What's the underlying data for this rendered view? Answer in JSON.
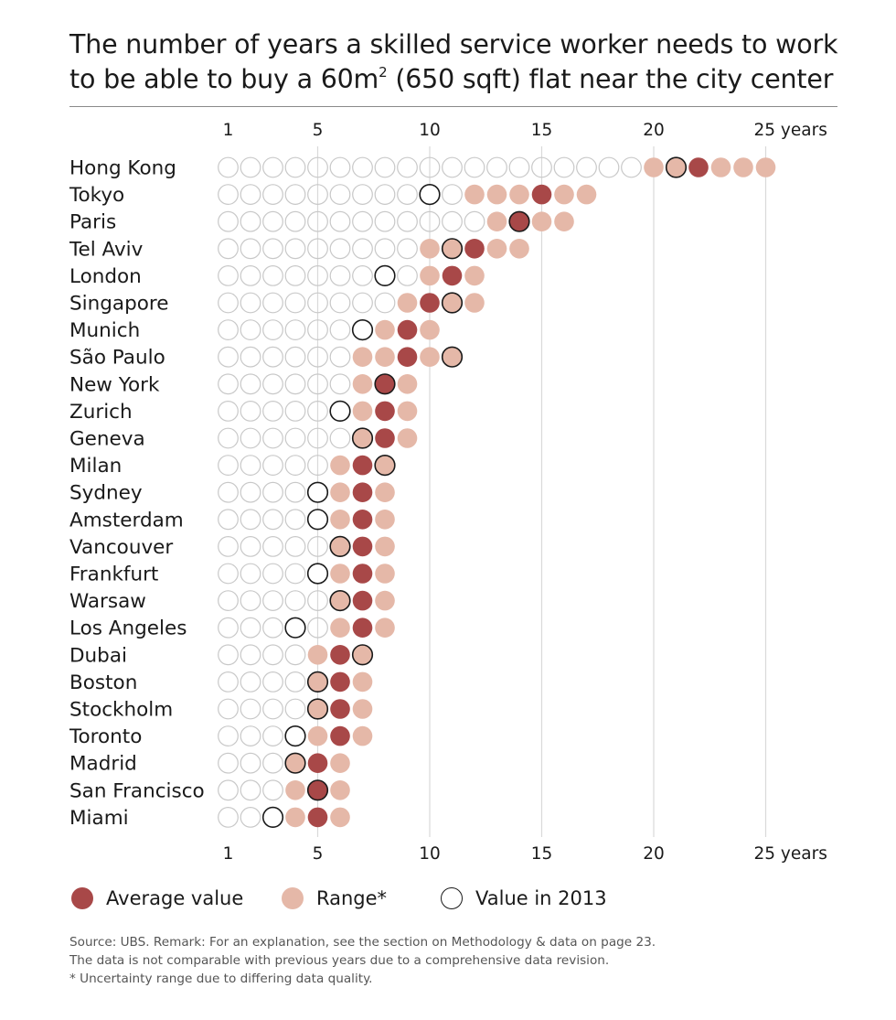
{
  "title": {
    "line1": "The number of years a skilled service worker needs to work",
    "line2_before": "to be able to buy a 60m",
    "line2_sup": "2",
    "line2_after": " (650 sqft) flat near the city center"
  },
  "colors": {
    "average": "#a84848",
    "range": "#e5b8a8",
    "empty_stroke": "#c8c8c8",
    "value_2013_stroke": "#1a1a1a",
    "gridline": "#d9d9d9"
  },
  "legend": {
    "average_label": "Average value",
    "range_label": "Range*",
    "value_2013_label": "Value in 2013"
  },
  "footnotes": {
    "source": "Source: UBS. Remark: For an explanation, see the section on Methodology & data on page 23.",
    "revision": "The data is not comparable with previous years due to a comprehensive data revision.",
    "uncertainty": "* Uncertainty range due to differing data quality."
  },
  "chart_data": {
    "type": "dot-range",
    "x_ticks": [
      {
        "value": 1,
        "label": "1"
      },
      {
        "value": 5,
        "label": "5"
      },
      {
        "value": 10,
        "label": "10"
      },
      {
        "value": 15,
        "label": "15"
      },
      {
        "value": 20,
        "label": "20"
      },
      {
        "value": 25,
        "label": "25 years"
      }
    ],
    "x_range": [
      1,
      25
    ],
    "cities": [
      {
        "name": "Hong Kong",
        "range": [
          20,
          25
        ],
        "average": 22,
        "value_2013": 21
      },
      {
        "name": "Tokyo",
        "range": [
          12,
          17
        ],
        "average": 15,
        "value_2013": 10
      },
      {
        "name": "Paris",
        "range": [
          13,
          16
        ],
        "average": 14,
        "value_2013": 14
      },
      {
        "name": "Tel Aviv",
        "range": [
          10,
          14
        ],
        "average": 12,
        "value_2013": 11
      },
      {
        "name": "London",
        "range": [
          10,
          12
        ],
        "average": 11,
        "value_2013": 8
      },
      {
        "name": "Singapore",
        "range": [
          9,
          12
        ],
        "average": 10,
        "value_2013": 11
      },
      {
        "name": "Munich",
        "range": [
          8,
          10
        ],
        "average": 9,
        "value_2013": 7
      },
      {
        "name": "São Paulo",
        "range": [
          7,
          11
        ],
        "average": 9,
        "value_2013": 11
      },
      {
        "name": "New York",
        "range": [
          7,
          9
        ],
        "average": 8,
        "value_2013": 8
      },
      {
        "name": "Zurich",
        "range": [
          7,
          9
        ],
        "average": 8,
        "value_2013": 6
      },
      {
        "name": "Geneva",
        "range": [
          7,
          9
        ],
        "average": 8,
        "value_2013": 7
      },
      {
        "name": "Milan",
        "range": [
          6,
          8
        ],
        "average": 7,
        "value_2013": 8
      },
      {
        "name": "Sydney",
        "range": [
          6,
          8
        ],
        "average": 7,
        "value_2013": 5
      },
      {
        "name": "Amsterdam",
        "range": [
          6,
          8
        ],
        "average": 7,
        "value_2013": 5
      },
      {
        "name": "Vancouver",
        "range": [
          6,
          8
        ],
        "average": 7,
        "value_2013": 6
      },
      {
        "name": "Frankfurt",
        "range": [
          6,
          8
        ],
        "average": 7,
        "value_2013": 5
      },
      {
        "name": "Warsaw",
        "range": [
          6,
          8
        ],
        "average": 7,
        "value_2013": 6
      },
      {
        "name": "Los Angeles",
        "range": [
          6,
          8
        ],
        "average": 7,
        "value_2013": 4
      },
      {
        "name": "Dubai",
        "range": [
          5,
          7
        ],
        "average": 6,
        "value_2013": 7
      },
      {
        "name": "Boston",
        "range": [
          5,
          7
        ],
        "average": 6,
        "value_2013": 5
      },
      {
        "name": "Stockholm",
        "range": [
          5,
          7
        ],
        "average": 6,
        "value_2013": 5
      },
      {
        "name": "Toronto",
        "range": [
          5,
          7
        ],
        "average": 6,
        "value_2013": 4
      },
      {
        "name": "Madrid",
        "range": [
          4,
          6
        ],
        "average": 5,
        "value_2013": 4
      },
      {
        "name": "San Francisco",
        "range": [
          4,
          6
        ],
        "average": 5,
        "value_2013": 5
      },
      {
        "name": "Miami",
        "range": [
          4,
          6
        ],
        "average": 5,
        "value_2013": 3
      }
    ]
  }
}
